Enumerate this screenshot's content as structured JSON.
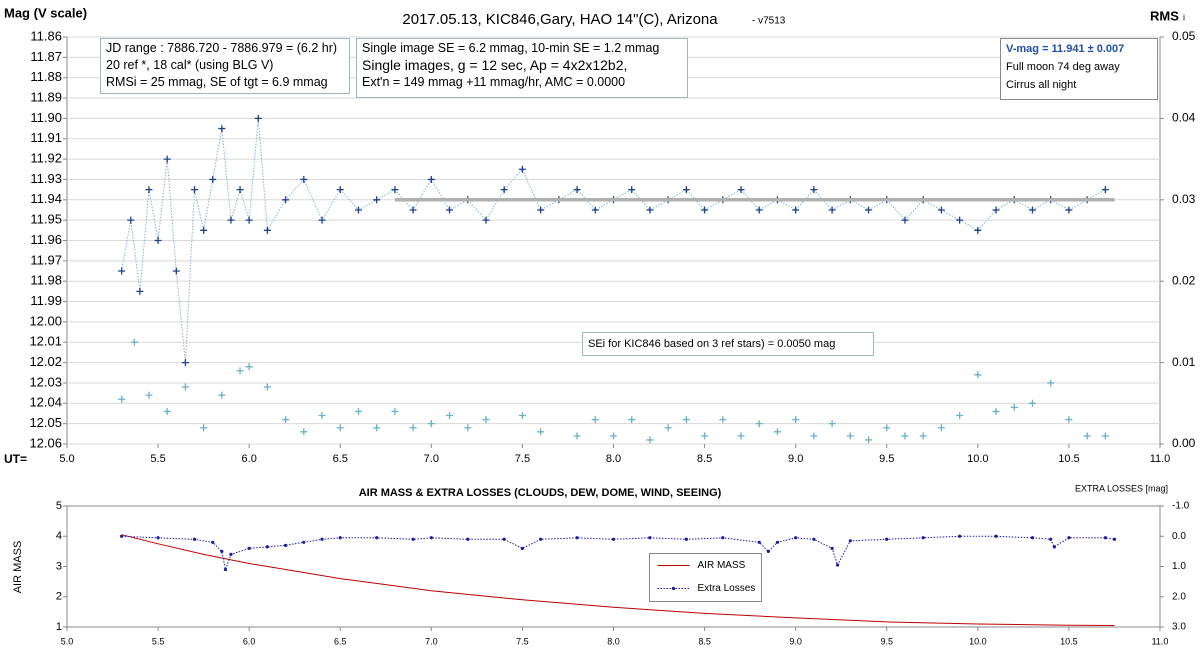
{
  "chart_data": [
    {
      "type": "scatter",
      "title": "2017.05.13,  KIC846,Gary,  HAO  14\"(C), Arizona",
      "subtitle": "- v7513",
      "y_label": "Mag (V scale)",
      "y2_label": "RMS",
      "y2_label_sub": "i",
      "x_label": "UT=",
      "text_boxes": [
        [
          "JD range  : 7886.720  - 7886.979  = (6.2 hr)",
          "20 ref *, 18 cal* (using BLG V)",
          "RMSi = 25 mmag, SE of tgt = 6.9 mmag"
        ],
        [
          "Single image SE = 6.2 mmag, 10-min SE = 1.2 mmag",
          "Single images, g = 12 sec, Ap = 4x2x12b2,",
          "Ext'n = 149  mmag +11 mmag/hr, AMC = 0.0000"
        ],
        [
          "V-mag = 11.941 ± 0.007",
          "Full moon 74 deg away",
          "Cirrus all night"
        ]
      ],
      "annotation": "SEi for KIC846 based on 3 ref stars) = 0.0050 mag",
      "xlim": [
        5.0,
        11.0
      ],
      "xticks": [
        {
          "value": 5.0,
          "label": "5.0"
        },
        5.5,
        {
          "value": 6.0,
          "label": "6.0"
        },
        6.5,
        {
          "value": 7.0,
          "label": "7.0"
        },
        7.5,
        {
          "value": 8.0,
          "label": "8.0"
        },
        8.5,
        {
          "value": 9.0,
          "label": "9.0"
        },
        9.5,
        {
          "value": 10.0,
          "label": "10.0"
        },
        10.5,
        {
          "value": 11.0,
          "label": "11.0"
        }
      ],
      "ylim": [
        12.06,
        11.86
      ],
      "yticks": [
        11.86,
        11.87,
        11.88,
        11.89,
        {
          "value": 11.9,
          "label": "11.90"
        },
        11.91,
        11.92,
        11.93,
        11.94,
        11.95,
        11.96,
        11.97,
        11.98,
        11.99,
        {
          "value": 12.0,
          "label": "12.00"
        },
        12.01,
        12.02,
        12.03,
        12.04,
        12.05,
        12.06
      ],
      "y2lim": [
        0,
        0.05
      ],
      "y2ticks": [
        {
          "value": 0,
          "label": "0.00"
        },
        0.01,
        0.02,
        0.03,
        0.04,
        0.05
      ],
      "grid": true,
      "series": [
        {
          "color": "#1f3f8f",
          "line_color": "#7fb3d5",
          "line": "dotted",
          "marker": "+",
          "x": [
            5.3,
            5.35,
            5.4,
            5.45,
            5.5,
            5.55,
            5.6,
            5.65,
            5.7,
            5.75,
            5.8,
            5.85,
            5.9,
            5.95,
            6.0,
            6.05,
            6.1,
            6.2,
            6.3,
            6.4,
            6.5,
            6.6,
            6.7,
            6.8,
            6.9,
            7.0,
            7.1,
            7.2,
            7.3,
            7.4,
            7.5,
            7.6,
            7.7,
            7.8,
            7.9,
            8.0,
            8.1,
            8.2,
            8.3,
            8.4,
            8.5,
            8.6,
            8.7,
            8.8,
            8.9,
            9.0,
            9.1,
            9.2,
            9.3,
            9.4,
            9.5,
            9.6,
            9.7,
            9.8,
            9.9,
            10.0,
            10.1,
            10.2,
            10.3,
            10.4,
            10.5,
            10.6,
            10.7
          ],
          "values": [
            11.975,
            11.95,
            11.985,
            11.935,
            11.96,
            11.92,
            11.975,
            12.02,
            11.935,
            11.955,
            11.93,
            11.905,
            11.95,
            11.935,
            11.95,
            11.9,
            11.955,
            11.94,
            11.93,
            11.95,
            11.935,
            11.945,
            11.94,
            11.935,
            11.945,
            11.93,
            11.945,
            11.94,
            11.95,
            11.935,
            11.925,
            11.945,
            11.94,
            11.935,
            11.945,
            11.94,
            11.935,
            11.945,
            11.94,
            11.935,
            11.945,
            11.94,
            11.935,
            11.945,
            11.94,
            11.945,
            11.935,
            11.945,
            11.94,
            11.945,
            11.94,
            11.95,
            11.94,
            11.945,
            11.95,
            11.955,
            11.945,
            11.94,
            11.945,
            11.94,
            11.945,
            11.94,
            11.935
          ]
        },
        {
          "color": "#6ab0c8",
          "line": "none",
          "marker": "+",
          "axis": "y2",
          "x": [
            5.3,
            5.37,
            5.45,
            5.55,
            5.65,
            5.75,
            5.85,
            5.95,
            6.0,
            6.1,
            6.2,
            6.3,
            6.4,
            6.5,
            6.6,
            6.7,
            6.8,
            6.9,
            7.0,
            7.1,
            7.2,
            7.3,
            7.5,
            7.6,
            7.8,
            7.9,
            8.0,
            8.1,
            8.2,
            8.3,
            8.4,
            8.5,
            8.6,
            8.7,
            8.8,
            8.9,
            9.0,
            9.1,
            9.2,
            9.3,
            9.4,
            9.5,
            9.6,
            9.7,
            9.8,
            9.9,
            10.0,
            10.1,
            10.2,
            10.3,
            10.4,
            10.5,
            10.6,
            10.7
          ],
          "values": [
            0.0055,
            0.0125,
            0.006,
            0.004,
            0.007,
            0.002,
            0.006,
            0.009,
            0.0095,
            0.007,
            0.003,
            0.0015,
            0.0035,
            0.002,
            0.004,
            0.002,
            0.004,
            0.002,
            0.0025,
            0.0035,
            0.002,
            0.003,
            0.0035,
            0.0015,
            0.001,
            0.003,
            0.001,
            0.003,
            0.0005,
            0.002,
            0.003,
            0.001,
            0.003,
            0.001,
            0.0025,
            0.0015,
            0.003,
            0.001,
            0.0025,
            0.001,
            0.0005,
            0.002,
            0.001,
            0.001,
            0.002,
            0.0035,
            0.0085,
            0.004,
            0.0045,
            0.005,
            0.0075,
            0.003,
            0.001,
            0.001
          ]
        },
        {
          "color": "#b0b0b0",
          "line": "thick",
          "marker": "none",
          "x": [
            6.8,
            10.75
          ],
          "values": [
            11.94,
            11.94
          ]
        }
      ]
    },
    {
      "type": "line",
      "title": "AIR MASS & EXTRA LOSSES (CLOUDS, DEW, DOME, WIND, SEEING)",
      "y_label": "AIR MASS",
      "y2_label": "EXTRA LOSSES [mag]",
      "xlim": [
        5.0,
        11.0
      ],
      "xticks": [
        {
          "value": 5.0,
          "label": "5.0"
        },
        5.5,
        {
          "value": 6.0,
          "label": "6.0"
        },
        6.5,
        {
          "value": 7.0,
          "label": "7.0"
        },
        7.5,
        {
          "value": 8.0,
          "label": "8.0"
        },
        8.5,
        {
          "value": 9.0,
          "label": "9.0"
        },
        9.5,
        {
          "value": 10.0,
          "label": "10.0"
        },
        10.5,
        {
          "value": 11.0,
          "label": "11.0"
        }
      ],
      "ylim": [
        1,
        5
      ],
      "yticks": [
        1,
        2,
        3,
        4,
        5
      ],
      "y2lim": [
        3,
        -1
      ],
      "y2ticks": [
        {
          "value": -1,
          "label": "-1.0"
        },
        {
          "value": 0,
          "label": "0.0"
        },
        {
          "value": 1,
          "label": "1.0"
        },
        {
          "value": 2,
          "label": "2.0"
        },
        {
          "value": 3,
          "label": "3.0"
        }
      ],
      "grid": false,
      "legend": "center",
      "series": [
        {
          "name": "AIR MASS",
          "color": "#c00000",
          "line": "solid",
          "marker": "none",
          "x": [
            5.3,
            5.5,
            5.75,
            6.0,
            6.25,
            6.5,
            7.0,
            7.5,
            8.0,
            8.5,
            9.0,
            9.5,
            10.0,
            10.5,
            10.75
          ],
          "values": [
            4.05,
            3.75,
            3.4,
            3.1,
            2.85,
            2.6,
            2.2,
            1.9,
            1.65,
            1.45,
            1.3,
            1.17,
            1.1,
            1.06,
            1.05
          ]
        },
        {
          "name": "Extra Losses",
          "color": "#1a1aa8",
          "line": "dotted",
          "marker": ".",
          "axis": "y2",
          "x": [
            5.3,
            5.5,
            5.7,
            5.8,
            5.85,
            5.87,
            5.9,
            6.0,
            6.1,
            6.2,
            6.3,
            6.4,
            6.5,
            6.7,
            6.9,
            7.0,
            7.2,
            7.4,
            7.5,
            7.6,
            7.8,
            8.0,
            8.2,
            8.4,
            8.6,
            8.8,
            8.85,
            8.9,
            9.0,
            9.1,
            9.2,
            9.23,
            9.3,
            9.5,
            9.7,
            9.9,
            10.1,
            10.3,
            10.4,
            10.42,
            10.5,
            10.7,
            10.75
          ],
          "values": [
            0.0,
            0.05,
            0.1,
            0.2,
            0.5,
            1.1,
            0.6,
            0.4,
            0.35,
            0.3,
            0.2,
            0.1,
            0.05,
            0.05,
            0.1,
            0.05,
            0.1,
            0.1,
            0.4,
            0.1,
            0.05,
            0.1,
            0.05,
            0.1,
            0.05,
            0.2,
            0.5,
            0.2,
            0.05,
            0.1,
            0.4,
            0.95,
            0.15,
            0.1,
            0.05,
            0.0,
            0.0,
            0.05,
            0.1,
            0.35,
            0.05,
            0.05,
            0.1
          ]
        }
      ]
    }
  ]
}
